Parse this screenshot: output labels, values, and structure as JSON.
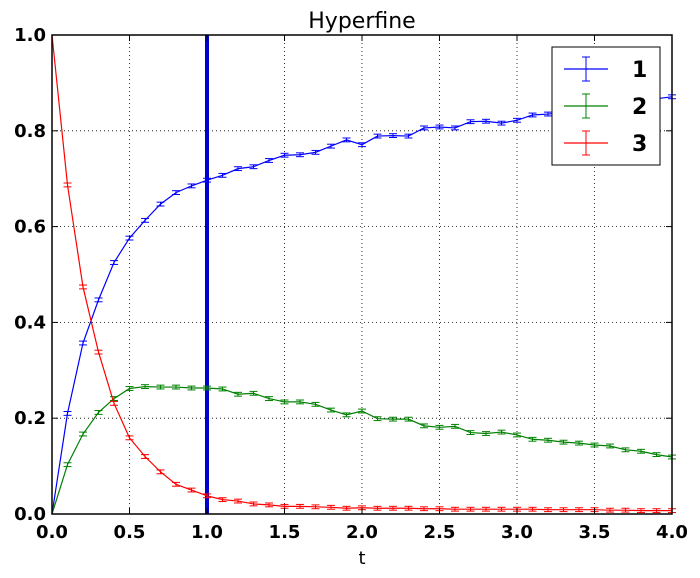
{
  "chart_data": {
    "type": "line",
    "title": "Hyperfine",
    "xlabel": "t",
    "ylabel": "",
    "xlim": [
      0.0,
      4.0
    ],
    "ylim": [
      0.0,
      1.0
    ],
    "xticks": [
      "0.0",
      "0.5",
      "1.0",
      "1.5",
      "2.0",
      "2.5",
      "3.0",
      "3.5",
      "4.0"
    ],
    "yticks": [
      "0.0",
      "0.2",
      "0.4",
      "0.6",
      "0.8",
      "1.0"
    ],
    "grid": true,
    "legend_position": "top-right",
    "vline": {
      "x": 1.0,
      "color": "#0000cc"
    },
    "x": [
      0.0,
      0.1,
      0.2,
      0.3,
      0.4,
      0.5,
      0.6,
      0.7,
      0.8,
      0.9,
      1.0,
      1.1,
      1.2,
      1.3,
      1.4,
      1.5,
      1.6,
      1.7,
      1.8,
      1.9,
      2.0,
      2.1,
      2.2,
      2.3,
      2.4,
      2.5,
      2.6,
      2.7,
      2.8,
      2.9,
      3.0,
      3.1,
      3.2,
      3.3,
      3.4,
      3.5,
      3.6,
      3.7,
      3.8,
      3.9,
      4.0
    ],
    "series": [
      {
        "name": "1",
        "color": "#0000ff",
        "values": [
          0.0,
          0.21,
          0.357,
          0.447,
          0.525,
          0.576,
          0.613,
          0.647,
          0.671,
          0.685,
          0.697,
          0.707,
          0.721,
          0.725,
          0.738,
          0.749,
          0.75,
          0.755,
          0.768,
          0.781,
          0.771,
          0.789,
          0.79,
          0.789,
          0.806,
          0.808,
          0.806,
          0.819,
          0.82,
          0.816,
          0.822,
          0.833,
          0.835,
          0.838,
          0.843,
          0.847,
          0.852,
          0.857,
          0.862,
          0.867,
          0.871
        ],
        "err": 0.004
      },
      {
        "name": "2",
        "color": "#008000",
        "values": [
          0.0,
          0.103,
          0.167,
          0.212,
          0.241,
          0.262,
          0.266,
          0.265,
          0.265,
          0.263,
          0.263,
          0.261,
          0.25,
          0.252,
          0.241,
          0.234,
          0.234,
          0.229,
          0.217,
          0.207,
          0.215,
          0.199,
          0.198,
          0.198,
          0.184,
          0.181,
          0.183,
          0.17,
          0.168,
          0.171,
          0.165,
          0.156,
          0.154,
          0.15,
          0.148,
          0.144,
          0.142,
          0.134,
          0.131,
          0.124,
          0.119
        ],
        "err": 0.004
      },
      {
        "name": "3",
        "color": "#ff0000",
        "values": [
          1.0,
          0.687,
          0.474,
          0.338,
          0.231,
          0.159,
          0.12,
          0.088,
          0.062,
          0.05,
          0.038,
          0.03,
          0.027,
          0.021,
          0.019,
          0.016,
          0.016,
          0.015,
          0.014,
          0.012,
          0.013,
          0.012,
          0.012,
          0.012,
          0.011,
          0.011,
          0.01,
          0.01,
          0.01,
          0.01,
          0.01,
          0.01,
          0.009,
          0.009,
          0.009,
          0.009,
          0.008,
          0.008,
          0.007,
          0.007,
          0.007
        ],
        "err": 0.004
      }
    ]
  }
}
